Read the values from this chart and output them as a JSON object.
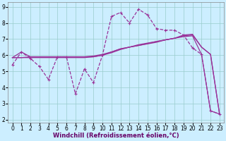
{
  "title": "",
  "xlabel": "Windchill (Refroidissement éolien,°C)",
  "bg_color": "#cceeff",
  "line_color": "#993399",
  "grid_color": "#99cccc",
  "xlim": [
    -0.5,
    23.5
  ],
  "ylim": [
    1.8,
    9.3
  ],
  "xticks": [
    0,
    1,
    2,
    3,
    4,
    5,
    6,
    7,
    8,
    9,
    10,
    11,
    12,
    13,
    14,
    15,
    16,
    17,
    18,
    19,
    20,
    21,
    22,
    23
  ],
  "yticks": [
    2,
    3,
    4,
    5,
    6,
    7,
    8,
    9
  ],
  "series_jagged_x": [
    0,
    1,
    2,
    3,
    4,
    5,
    6,
    7,
    8,
    9,
    10,
    11,
    12,
    13,
    14,
    15,
    16,
    17,
    18,
    19,
    20,
    21,
    22,
    23
  ],
  "series_jagged_y": [
    5.4,
    6.2,
    5.8,
    5.3,
    4.5,
    5.9,
    5.9,
    3.6,
    5.15,
    4.3,
    6.0,
    8.4,
    8.65,
    8.0,
    8.85,
    8.5,
    7.65,
    7.55,
    7.55,
    7.25,
    6.45,
    6.05,
    2.55,
    2.35
  ],
  "series_trend1_x": [
    0,
    1,
    2,
    3,
    4,
    5,
    6,
    7,
    8,
    9,
    10,
    11,
    12,
    13,
    14,
    15,
    16,
    17,
    18,
    19,
    20,
    21,
    22,
    23
  ],
  "series_trend1_y": [
    5.85,
    5.85,
    5.85,
    5.85,
    5.85,
    5.85,
    5.85,
    5.85,
    5.85,
    5.9,
    6.0,
    6.2,
    6.4,
    6.5,
    6.65,
    6.75,
    6.85,
    6.95,
    7.05,
    7.15,
    7.2,
    6.05,
    2.55,
    2.35
  ],
  "series_trend2_x": [
    0,
    1,
    2,
    3,
    4,
    5,
    6,
    7,
    8,
    9,
    10,
    11,
    12,
    13,
    14,
    15,
    16,
    17,
    18,
    19,
    20,
    21,
    22,
    23
  ],
  "series_trend2_y": [
    5.85,
    5.85,
    5.9,
    5.9,
    5.9,
    5.9,
    5.9,
    5.9,
    5.9,
    5.95,
    6.05,
    6.2,
    6.38,
    6.5,
    6.6,
    6.72,
    6.85,
    6.95,
    7.05,
    7.25,
    7.3,
    6.5,
    6.05,
    2.35
  ],
  "series_diag_x": [
    0,
    1,
    2,
    3,
    4,
    5,
    6,
    7,
    8,
    9,
    10,
    11,
    12,
    13,
    14,
    15,
    16,
    17,
    18,
    19,
    20,
    21,
    22,
    23
  ],
  "series_diag_y": [
    5.85,
    6.2,
    5.9,
    5.9,
    5.9,
    5.9,
    5.9,
    5.9,
    5.9,
    5.9,
    6.0,
    6.15,
    6.35,
    6.5,
    6.6,
    6.7,
    6.8,
    6.95,
    7.05,
    7.2,
    7.25,
    6.5,
    6.05,
    2.35
  ],
  "markersize": 3,
  "linewidth": 0.9,
  "xlabel_fontsize": 6,
  "tick_fontsize": 5.5
}
